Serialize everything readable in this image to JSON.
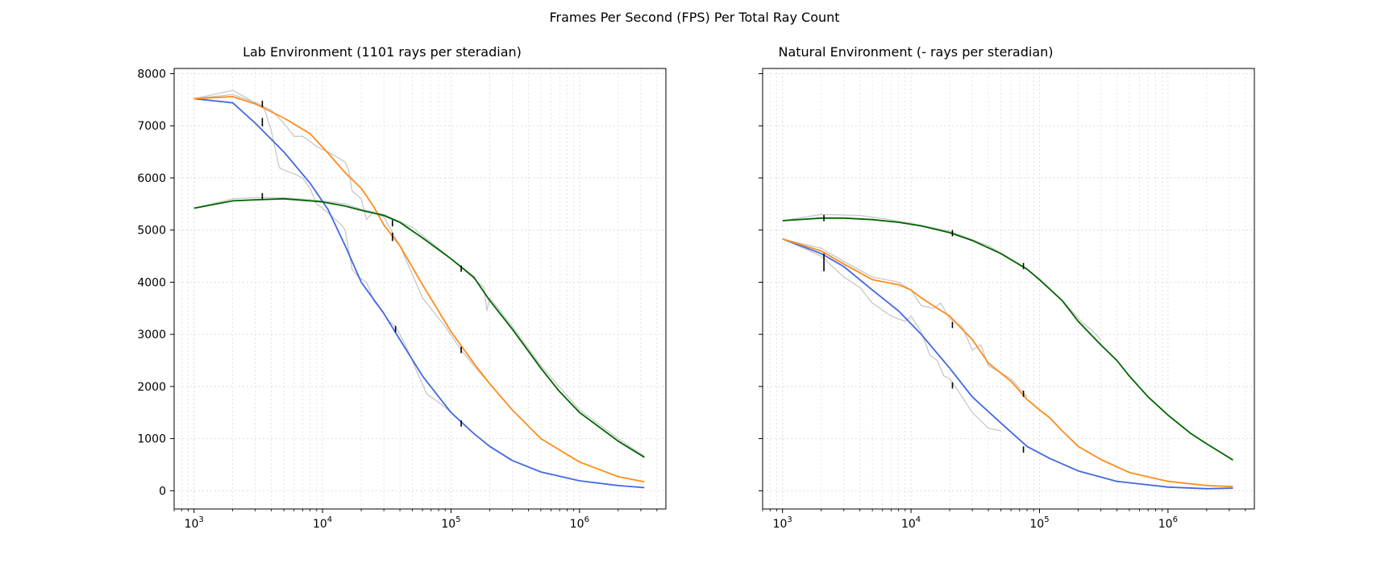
{
  "figure_title": "Frames Per Second (FPS) Per Total Ray Count",
  "colors": {
    "blue": "#4169e1",
    "orange": "#ff8c1a",
    "green": "#006400",
    "raw": "#c8c8c8",
    "grid": "#d9d9d9",
    "errorbar": "#000000"
  },
  "chart_data": [
    {
      "type": "line",
      "title": "Lab Environment (1101 rays per steradian)",
      "xscale": "log",
      "xlim": [
        700,
        4700000
      ],
      "ylim": [
        -350,
        8100
      ],
      "yticks": [
        0,
        1000,
        2000,
        3000,
        4000,
        5000,
        6000,
        7000,
        8000
      ],
      "xticks": [
        {
          "value": 1000,
          "base": "10",
          "exp": "3"
        },
        {
          "value": 10000,
          "base": "10",
          "exp": "4"
        },
        {
          "value": 100000,
          "base": "10",
          "exp": "5"
        },
        {
          "value": 1000000,
          "base": "10",
          "exp": "6"
        }
      ],
      "grid": true,
      "series": [
        {
          "color": "blue",
          "x": [
            1000,
            2000,
            3000,
            5000,
            8000,
            11000,
            15000,
            20000,
            30000,
            40000,
            60000,
            100000,
            150000,
            200000,
            300000,
            500000,
            1000000,
            2000000,
            3200000
          ],
          "y": [
            7520,
            7440,
            7050,
            6500,
            5900,
            5400,
            4700,
            4000,
            3400,
            2900,
            2200,
            1500,
            1100,
            850,
            580,
            360,
            190,
            100,
            60
          ]
        },
        {
          "color": "orange",
          "x": [
            1000,
            2000,
            3000,
            5000,
            8000,
            11000,
            15000,
            20000,
            25000,
            30000,
            40000,
            60000,
            100000,
            150000,
            200000,
            300000,
            500000,
            1000000,
            2000000,
            3200000
          ],
          "y": [
            7520,
            7560,
            7420,
            7150,
            6850,
            6480,
            6100,
            5800,
            5450,
            5100,
            4700,
            3950,
            3050,
            2450,
            2050,
            1550,
            1000,
            550,
            270,
            170
          ]
        },
        {
          "color": "green",
          "x": [
            1000,
            2000,
            3000,
            5000,
            8000,
            10000,
            15000,
            20000,
            30000,
            40000,
            60000,
            100000,
            150000,
            200000,
            300000,
            500000,
            700000,
            1000000,
            2000000,
            3200000
          ],
          "y": [
            5420,
            5560,
            5580,
            5600,
            5560,
            5540,
            5460,
            5380,
            5280,
            5150,
            4850,
            4450,
            4100,
            3650,
            3100,
            2350,
            1900,
            1500,
            950,
            640
          ]
        },
        {
          "color": "raw",
          "x": [
            1000,
            2000,
            2800,
            3500,
            4000,
            4600,
            5000,
            6000,
            7000,
            8000,
            9000,
            10000,
            12000,
            14000,
            15000,
            16000,
            17000,
            19000,
            22000,
            25000,
            30000,
            33000,
            37000,
            42000,
            48000,
            55000,
            65000,
            80000,
            100000
          ],
          "y": [
            7520,
            7680,
            7480,
            7350,
            6900,
            6200,
            6150,
            6080,
            6000,
            5800,
            5500,
            5420,
            5250,
            5100,
            5000,
            4600,
            4250,
            4100,
            4000,
            3650,
            3400,
            3250,
            3150,
            2900,
            2600,
            2250,
            1850,
            1700,
            1500
          ]
        },
        {
          "color": "raw",
          "x": [
            1000,
            2000,
            3000,
            4000,
            5000,
            6000,
            7000,
            8000,
            9000,
            10000,
            11000,
            12000,
            14000,
            15000,
            16000,
            17000,
            20000,
            22000,
            25000,
            30000,
            40000,
            60000,
            90000,
            120000,
            150000,
            200000
          ],
          "y": [
            7520,
            7600,
            7450,
            7300,
            7050,
            6800,
            6800,
            6700,
            6600,
            6550,
            6500,
            6450,
            6350,
            6300,
            6150,
            5750,
            5600,
            5200,
            5350,
            5250,
            4700,
            3700,
            3150,
            2700,
            2400,
            2050
          ]
        },
        {
          "color": "raw",
          "x": [
            1000,
            2000,
            3000,
            5000,
            8000,
            10000,
            15000,
            20000,
            30000,
            50000,
            80000,
            120000,
            180000,
            190000,
            200000,
            300000,
            500000,
            1000000,
            2000000,
            3200000
          ],
          "y": [
            5420,
            5600,
            5620,
            5620,
            5580,
            5560,
            5500,
            5400,
            5300,
            5050,
            4650,
            4280,
            3900,
            3450,
            3700,
            3150,
            2400,
            1550,
            1000,
            660
          ]
        }
      ],
      "errorbars": [
        {
          "x": 3400,
          "y": 7420,
          "err": 60
        },
        {
          "x": 3400,
          "y": 7070,
          "err": 80
        },
        {
          "x": 3400,
          "y": 5650,
          "err": 60
        },
        {
          "x": 35000,
          "y": 5130,
          "err": 60
        },
        {
          "x": 35000,
          "y": 4870,
          "err": 80
        },
        {
          "x": 37000,
          "y": 3100,
          "err": 60
        },
        {
          "x": 120000,
          "y": 4260,
          "err": 60
        },
        {
          "x": 120000,
          "y": 2700,
          "err": 60
        },
        {
          "x": 120000,
          "y": 1290,
          "err": 60
        }
      ]
    },
    {
      "type": "line",
      "title": "Natural Environment (- rays per steradian)",
      "xscale": "log",
      "xlim": [
        700,
        4700000
      ],
      "ylim": [
        -350,
        8100
      ],
      "yticks": [
        0,
        1000,
        2000,
        3000,
        4000,
        5000,
        6000,
        7000,
        8000
      ],
      "xticks": [
        {
          "value": 1000,
          "base": "10",
          "exp": "3"
        },
        {
          "value": 10000,
          "base": "10",
          "exp": "4"
        },
        {
          "value": 100000,
          "base": "10",
          "exp": "5"
        },
        {
          "value": 1000000,
          "base": "10",
          "exp": "6"
        }
      ],
      "grid": true,
      "series": [
        {
          "color": "blue",
          "x": [
            1000,
            2000,
            3000,
            5000,
            8000,
            12000,
            20000,
            30000,
            50000,
            80000,
            120000,
            200000,
            400000,
            1000000,
            2000000,
            3200000
          ],
          "y": [
            4830,
            4550,
            4300,
            3850,
            3450,
            3000,
            2350,
            1800,
            1300,
            850,
            620,
            380,
            180,
            70,
            40,
            50
          ]
        },
        {
          "color": "orange",
          "x": [
            1000,
            2000,
            3000,
            5000,
            8000,
            10000,
            12000,
            16000,
            20000,
            25000,
            30000,
            40000,
            60000,
            80000,
            100000,
            120000,
            150000,
            200000,
            300000,
            500000,
            1000000,
            2000000,
            3200000
          ],
          "y": [
            4830,
            4600,
            4350,
            4050,
            3950,
            3850,
            3700,
            3500,
            3350,
            3100,
            2900,
            2450,
            2100,
            1750,
            1550,
            1400,
            1150,
            850,
            600,
            350,
            180,
            100,
            80
          ]
        },
        {
          "color": "green",
          "x": [
            1000,
            2000,
            3000,
            5000,
            8000,
            12000,
            20000,
            30000,
            50000,
            80000,
            100000,
            150000,
            200000,
            300000,
            400000,
            500000,
            700000,
            1000000,
            1500000,
            2000000,
            3200000
          ],
          "y": [
            5180,
            5230,
            5230,
            5200,
            5150,
            5080,
            4950,
            4800,
            4550,
            4250,
            4050,
            3650,
            3250,
            2800,
            2500,
            2200,
            1800,
            1450,
            1100,
            900,
            590
          ]
        },
        {
          "color": "raw",
          "x": [
            1000,
            2000,
            3000,
            4000,
            5000,
            7000,
            9000,
            10000,
            12000,
            14000,
            16000,
            18000,
            20000,
            25000,
            30000,
            33000,
            40000,
            50000
          ],
          "y": [
            4830,
            4500,
            4100,
            3900,
            3600,
            3350,
            3250,
            3350,
            3050,
            2600,
            2500,
            2200,
            2150,
            1800,
            1500,
            1400,
            1200,
            1150
          ]
        },
        {
          "color": "raw",
          "x": [
            1000,
            2000,
            3000,
            5000,
            8000,
            10000,
            12000,
            15000,
            17000,
            20000,
            25000,
            30000,
            35000,
            40000,
            60000,
            80000
          ],
          "y": [
            4830,
            4650,
            4400,
            4100,
            4000,
            3850,
            3550,
            3500,
            3600,
            3300,
            3150,
            2700,
            2800,
            2400,
            2150,
            1800
          ]
        },
        {
          "color": "raw",
          "x": [
            1000,
            2000,
            4000,
            6000,
            10000,
            20000,
            40000,
            80000,
            150000,
            220000,
            250000,
            300000
          ],
          "y": [
            5180,
            5300,
            5280,
            5220,
            5130,
            4980,
            4700,
            4250,
            3650,
            3200,
            3100,
            2900
          ]
        }
      ],
      "errorbars": [
        {
          "x": 2100,
          "y": 5230,
          "err": 60
        },
        {
          "x": 2100,
          "y": 4380,
          "err": 170
        },
        {
          "x": 21000,
          "y": 4940,
          "err": 60
        },
        {
          "x": 21000,
          "y": 3180,
          "err": 60
        },
        {
          "x": 21000,
          "y": 2020,
          "err": 60
        },
        {
          "x": 75000,
          "y": 4310,
          "err": 60
        },
        {
          "x": 75000,
          "y": 1860,
          "err": 60
        },
        {
          "x": 75000,
          "y": 790,
          "err": 60
        }
      ]
    }
  ]
}
